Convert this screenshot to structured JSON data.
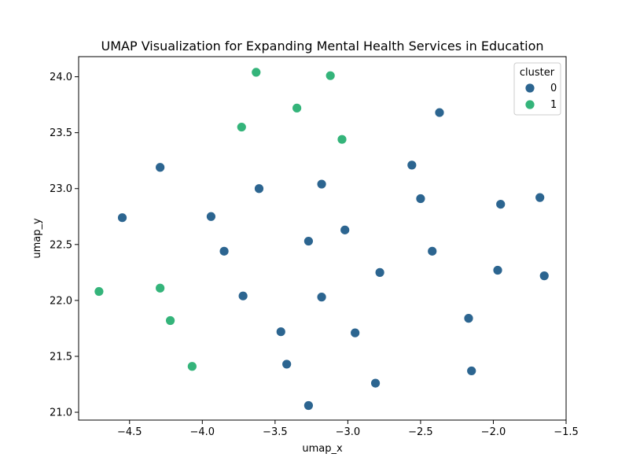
{
  "chart_data": {
    "type": "scatter",
    "title": "UMAP Visualization for Expanding Mental Health Services in Education",
    "xlabel": "umap_x",
    "ylabel": "umap_y",
    "xlim": [
      -4.85,
      -1.5
    ],
    "ylim": [
      20.93,
      24.18
    ],
    "x_ticks": [
      -4.5,
      -4.0,
      -3.5,
      -3.0,
      -2.5,
      -2.0,
      -1.5
    ],
    "x_tick_labels": [
      "−4.5",
      "−4.0",
      "−3.5",
      "−3.0",
      "−2.5",
      "−2.0",
      "−1.5"
    ],
    "y_ticks": [
      21.0,
      21.5,
      22.0,
      22.5,
      23.0,
      23.5,
      24.0
    ],
    "y_tick_labels": [
      "21.0",
      "21.5",
      "22.0",
      "22.5",
      "23.0",
      "23.5",
      "24.0"
    ],
    "grid": false,
    "legend": {
      "title": "cluster",
      "placement": "top-right"
    },
    "series": [
      {
        "name": "0",
        "color": "#2c6590",
        "points": [
          [
            -4.55,
            22.74
          ],
          [
            -4.29,
            23.19
          ],
          [
            -3.94,
            22.75
          ],
          [
            -3.85,
            22.44
          ],
          [
            -3.72,
            22.04
          ],
          [
            -3.61,
            23.0
          ],
          [
            -3.46,
            21.72
          ],
          [
            -3.42,
            21.43
          ],
          [
            -3.27,
            22.53
          ],
          [
            -3.27,
            21.06
          ],
          [
            -3.18,
            23.04
          ],
          [
            -3.18,
            22.03
          ],
          [
            -3.02,
            22.63
          ],
          [
            -2.95,
            21.71
          ],
          [
            -2.81,
            21.26
          ],
          [
            -2.78,
            22.25
          ],
          [
            -2.56,
            23.21
          ],
          [
            -2.5,
            22.91
          ],
          [
            -2.42,
            22.44
          ],
          [
            -2.37,
            23.68
          ],
          [
            -2.17,
            21.84
          ],
          [
            -2.15,
            21.37
          ],
          [
            -1.97,
            22.27
          ],
          [
            -1.95,
            22.86
          ],
          [
            -1.68,
            22.92
          ],
          [
            -1.65,
            22.22
          ]
        ]
      },
      {
        "name": "1",
        "color": "#34b47a",
        "points": [
          [
            -4.71,
            22.08
          ],
          [
            -4.29,
            22.11
          ],
          [
            -4.22,
            21.82
          ],
          [
            -4.07,
            21.41
          ],
          [
            -3.73,
            23.55
          ],
          [
            -3.63,
            24.04
          ],
          [
            -3.35,
            23.72
          ],
          [
            -3.12,
            24.01
          ],
          [
            -3.04,
            23.44
          ]
        ]
      }
    ]
  }
}
